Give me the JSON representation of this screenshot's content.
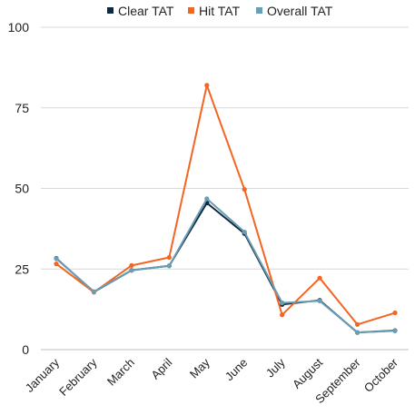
{
  "chart_data": {
    "type": "line",
    "categories": [
      "January",
      "February",
      "March",
      "April",
      "May",
      "June",
      "July",
      "August",
      "September",
      "October"
    ],
    "series": [
      {
        "name": "Clear TAT",
        "color": "#0f2a3f",
        "values": [
          28.3,
          17.9,
          24.6,
          26.0,
          45.5,
          36.0,
          14.0,
          15.3,
          5.3,
          5.9
        ]
      },
      {
        "name": "Hit TAT",
        "color": "#f26522",
        "values": [
          26.6,
          17.8,
          26.1,
          28.6,
          82.0,
          49.7,
          10.8,
          22.2,
          7.8,
          11.4
        ]
      },
      {
        "name": "Overall TAT",
        "color": "#6a9eb5",
        "values": [
          28.2,
          18.0,
          24.6,
          26.0,
          46.8,
          36.5,
          14.5,
          15.1,
          5.3,
          5.8
        ]
      }
    ],
    "yticks": [
      "0",
      "25",
      "50",
      "75",
      "100"
    ],
    "ylim": [
      0,
      100
    ],
    "grid": "horizontal",
    "legend_position": "top",
    "title": "",
    "xlabel": "",
    "ylabel": ""
  }
}
